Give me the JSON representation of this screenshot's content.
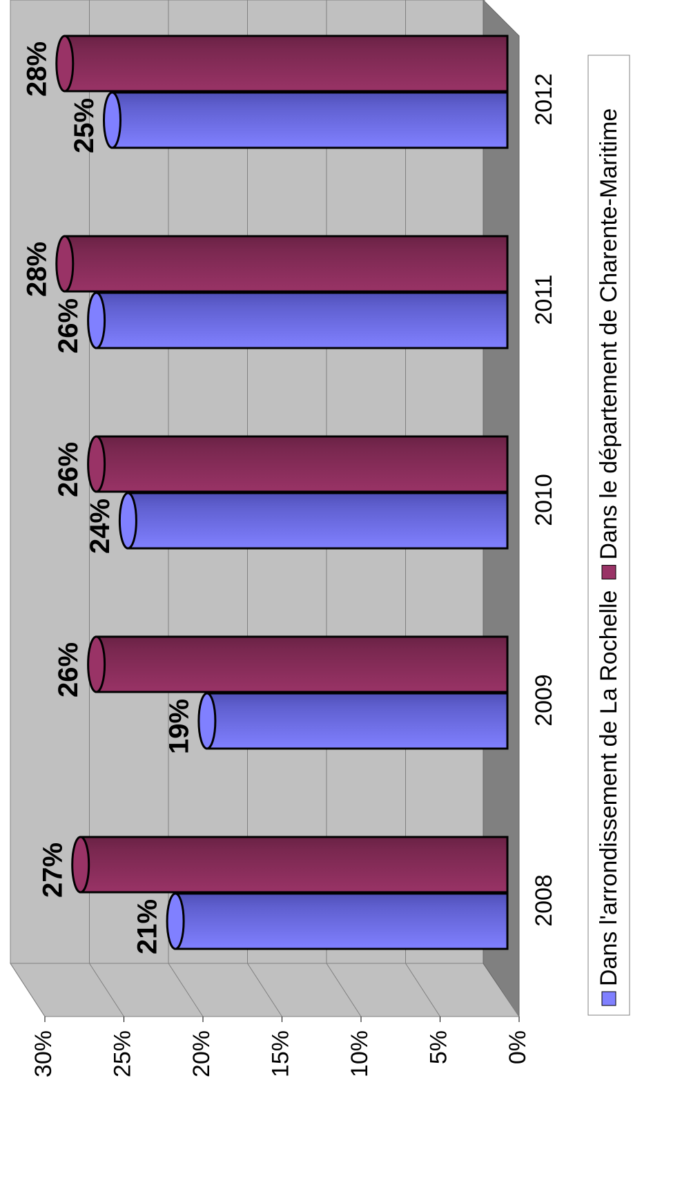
{
  "chart_data": {
    "type": "bar",
    "categories": [
      "2008",
      "2009",
      "2010",
      "2011",
      "2012"
    ],
    "series": [
      {
        "name": "Dans l'arrondissement de La Rochelle",
        "color": "#8080ff",
        "values": [
          21,
          19,
          24,
          26,
          25
        ],
        "value_labels": [
          "21%",
          "19%",
          "24%",
          "26%",
          "25%"
        ]
      },
      {
        "name": "Dans le département de Charente-Maritime",
        "color": "#993366",
        "values": [
          27,
          26,
          26,
          28,
          28
        ],
        "value_labels": [
          "27%",
          "26%",
          "26%",
          "28%",
          "28%"
        ]
      }
    ],
    "ylim": [
      0,
      30
    ],
    "yticks": [
      {
        "value": 0,
        "label": "0%"
      },
      {
        "value": 5,
        "label": "5%"
      },
      {
        "value": 10,
        "label": "10%"
      },
      {
        "value": 15,
        "label": "15%"
      },
      {
        "value": 20,
        "label": "20%"
      },
      {
        "value": 25,
        "label": "25%"
      },
      {
        "value": 30,
        "label": "30%"
      }
    ],
    "grid": true,
    "legend": "bottom"
  }
}
